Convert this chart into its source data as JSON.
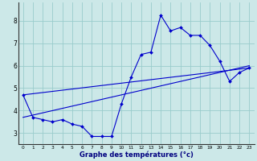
{
  "title": "",
  "xlabel": "Graphe des températures (°c)",
  "ylabel": "",
  "bg_color": "#cce8e8",
  "grid_color": "#99cccc",
  "line_color": "#0000cc",
  "xlim": [
    -0.5,
    23.5
  ],
  "ylim": [
    2.5,
    8.8
  ],
  "xticks": [
    0,
    1,
    2,
    3,
    4,
    5,
    6,
    7,
    8,
    9,
    10,
    11,
    12,
    13,
    14,
    15,
    16,
    17,
    18,
    19,
    20,
    21,
    22,
    23
  ],
  "yticks": [
    3,
    4,
    5,
    6,
    7,
    8
  ],
  "series1_x": [
    0,
    1,
    2,
    3,
    4,
    5,
    6,
    7,
    8,
    9,
    10,
    11,
    12,
    13,
    14,
    15,
    16,
    17,
    18,
    19,
    20,
    21,
    22,
    23
  ],
  "series1_y": [
    4.7,
    3.7,
    3.6,
    3.5,
    3.6,
    3.4,
    3.3,
    2.85,
    2.85,
    2.85,
    4.3,
    5.5,
    6.5,
    6.6,
    8.25,
    7.55,
    7.7,
    7.35,
    7.35,
    6.9,
    6.2,
    5.3,
    5.7,
    5.9
  ],
  "series2_x": [
    0,
    23
  ],
  "series2_y": [
    3.7,
    6.0
  ],
  "series3_x": [
    0,
    23
  ],
  "series3_y": [
    4.7,
    5.9
  ]
}
